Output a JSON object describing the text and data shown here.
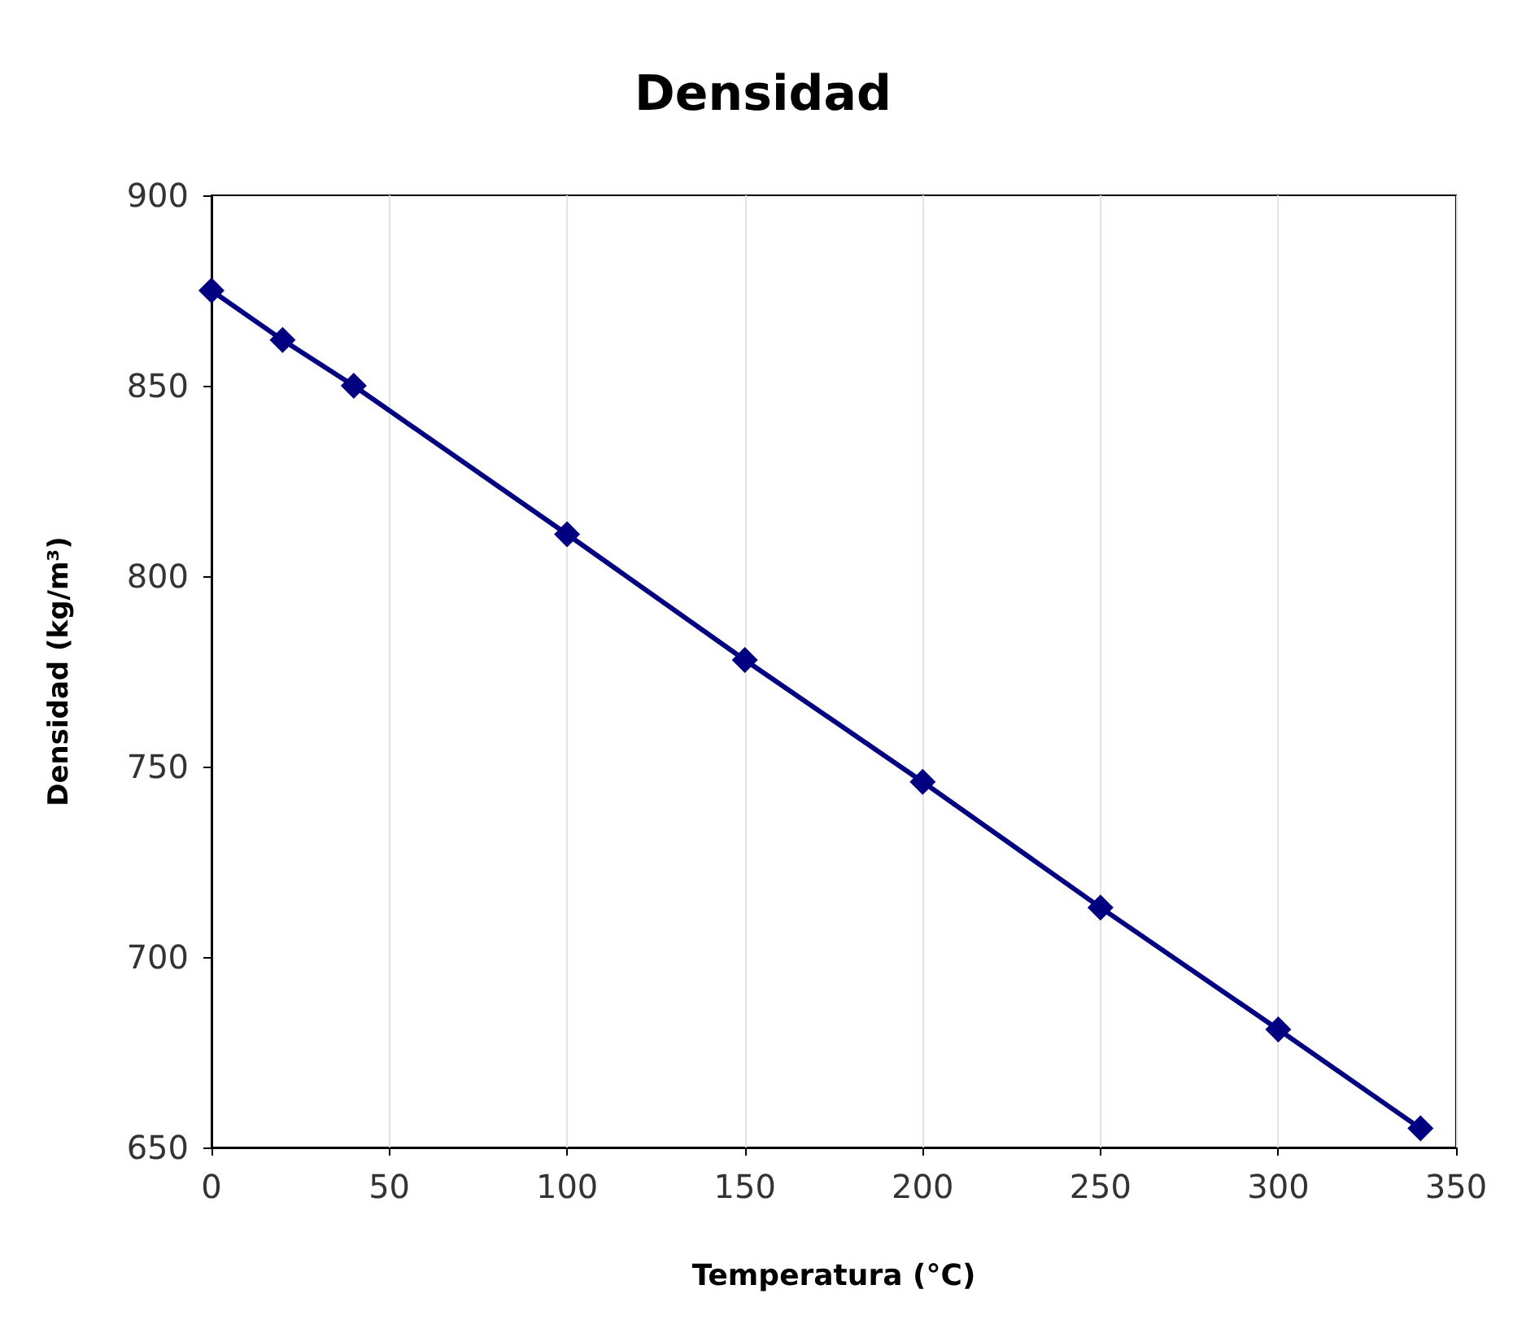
{
  "chart_data": {
    "type": "line",
    "title": "Densidad",
    "xlabel": "Temperatura (°C)",
    "ylabel": "Densidad (kg/m³)",
    "x": [
      0,
      20,
      40,
      100,
      150,
      200,
      250,
      300,
      340
    ],
    "series": [
      {
        "color": "#000080",
        "values": [
          875,
          862,
          850,
          811,
          778,
          746,
          713,
          681,
          655
        ]
      }
    ],
    "xlim": [
      0,
      350
    ],
    "xticks": [
      0,
      50,
      100,
      150,
      200,
      250,
      300,
      350
    ],
    "ylim": [
      650,
      900
    ],
    "yticks": [
      650,
      700,
      750,
      800,
      850,
      900
    ],
    "grid": "x",
    "marker": "diamond",
    "line_style": "solid"
  }
}
